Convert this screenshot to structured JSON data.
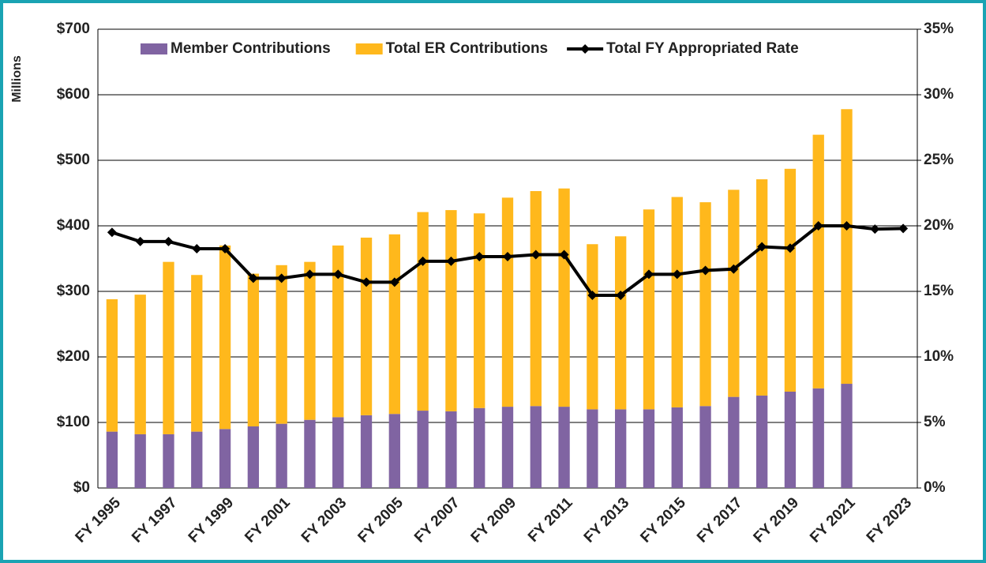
{
  "chart_data": {
    "type": "bar",
    "y_label": "Millions",
    "categories": [
      "FY 1995",
      null,
      "FY 1997",
      null,
      "FY 1999",
      null,
      "FY 2001",
      null,
      "FY 2003",
      null,
      "FY 2005",
      null,
      "FY 2007",
      null,
      "FY 2009",
      null,
      "FY 2011",
      null,
      "FY 2013",
      null,
      "FY 2015",
      null,
      "FY 2017",
      null,
      "FY 2019",
      null,
      "FY 2021",
      null,
      "FY 2023"
    ],
    "stacked": true,
    "series": [
      {
        "name": "Member Contributions",
        "color": "#8064a2",
        "type": "bar",
        "values": [
          86,
          82,
          82,
          86,
          90,
          94,
          98,
          104,
          108,
          111,
          113,
          118,
          117,
          122,
          124,
          125,
          124,
          120,
          120,
          120,
          123,
          125,
          139,
          141,
          147,
          152,
          159,
          null,
          null
        ]
      },
      {
        "name": "Total ER Contributions",
        "color": "#ffb81c",
        "type": "bar",
        "values": [
          202,
          213,
          263,
          239,
          280,
          233,
          242,
          241,
          262,
          271,
          274,
          303,
          307,
          297,
          319,
          328,
          333,
          252,
          264,
          305,
          321,
          311,
          316,
          330,
          340,
          387,
          419,
          null,
          null
        ]
      },
      {
        "name": "Total FY Appropriated Rate",
        "color": "#000000",
        "type": "line",
        "axis": "y2",
        "values": [
          19.5,
          18.8,
          18.8,
          18.25,
          18.25,
          16.0,
          16.0,
          16.3,
          16.3,
          15.7,
          15.7,
          17.3,
          17.3,
          17.65,
          17.65,
          17.8,
          17.8,
          14.7,
          14.7,
          16.3,
          16.3,
          16.6,
          16.7,
          18.4,
          18.3,
          20.0,
          20.0,
          19.75,
          19.8
        ]
      }
    ],
    "ylim": [
      0,
      700
    ],
    "yticks": [
      {
        "value": 0,
        "label": "$0"
      },
      {
        "value": 100,
        "label": "$100"
      },
      {
        "value": 200,
        "label": "$200"
      },
      {
        "value": 300,
        "label": "$300"
      },
      {
        "value": 400,
        "label": "$400"
      },
      {
        "value": 500,
        "label": "$500"
      },
      {
        "value": 600,
        "label": "$600"
      },
      {
        "value": 700,
        "label": "$700"
      }
    ],
    "y2lim": [
      0,
      35
    ],
    "y2ticks": [
      {
        "value": 0,
        "label": "0%"
      },
      {
        "value": 5,
        "label": "5%"
      },
      {
        "value": 10,
        "label": "10%"
      },
      {
        "value": 15,
        "label": "15%"
      },
      {
        "value": 20,
        "label": "20%"
      },
      {
        "value": 25,
        "label": "25%"
      },
      {
        "value": 30,
        "label": "30%"
      },
      {
        "value": 35,
        "label": "35%"
      }
    ],
    "grid": true,
    "legend": "top"
  }
}
